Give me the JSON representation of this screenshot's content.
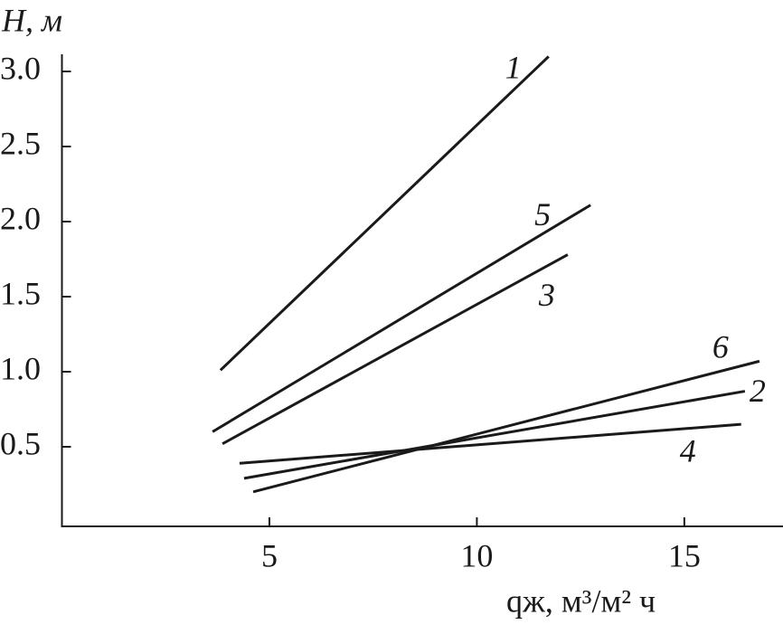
{
  "chart_data": {
    "type": "line",
    "y_label": "H, м",
    "x_label": "qж, м³/м² ч",
    "xlim": [
      0,
      17.4
    ],
    "ylim": [
      0,
      3.15
    ],
    "xticks": [
      5,
      10,
      15
    ],
    "yticks": [
      0.5,
      {
        "value": 1,
        "label": "1.0"
      },
      1.5,
      {
        "value": 2,
        "label": "2.0"
      },
      2.5,
      {
        "value": 3,
        "label": "3.0"
      }
    ],
    "color": "#1a1a1a",
    "series": [
      {
        "name": "1",
        "x": [
          3.82,
          11.73
        ],
        "values": [
          1.01,
          3.1
        ]
      },
      {
        "name": "5",
        "x": [
          3.63,
          12.74
        ],
        "values": [
          0.6,
          2.11
        ]
      },
      {
        "name": "3",
        "x": [
          3.87,
          12.19
        ],
        "values": [
          0.52,
          1.78
        ]
      },
      {
        "name": "6",
        "x": [
          4.61,
          16.81
        ],
        "values": [
          0.2,
          1.07
        ]
      },
      {
        "name": "2",
        "x": [
          4.39,
          16.46
        ],
        "values": [
          0.29,
          0.87
        ]
      },
      {
        "name": "4",
        "x": [
          4.28,
          16.37
        ],
        "values": [
          0.39,
          0.65
        ]
      }
    ]
  }
}
